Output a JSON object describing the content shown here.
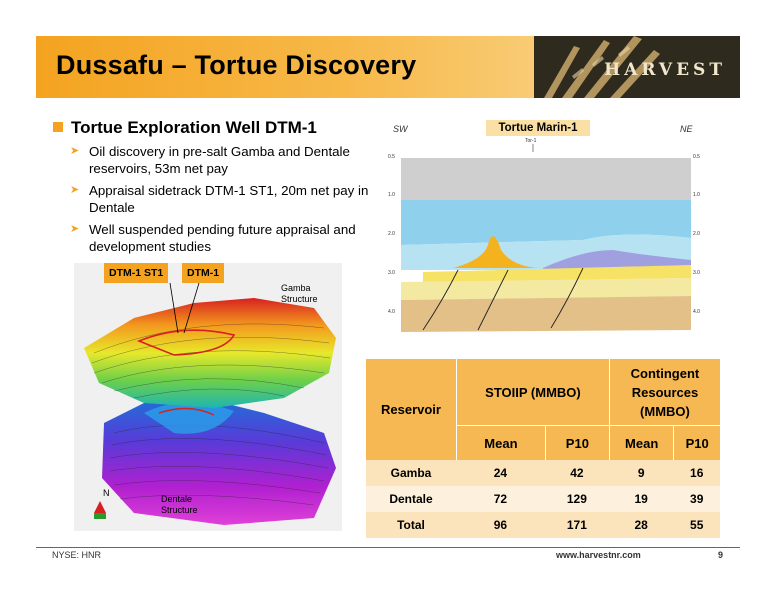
{
  "slide": {
    "title": "Dussafu – Tortue Discovery",
    "logo": "HARVEST",
    "main_bullet": "Tortue Exploration Well DTM-1",
    "sub_bullets": [
      "Oil discovery in pre-salt Gamba and Dentale reservoirs, 53m net pay",
      "Appraisal sidetrack DTM-1 ST1, 20m net pay in Dentale",
      "Well suspended pending future appraisal and development studies"
    ]
  },
  "map": {
    "tag_st1": "DTM-1 ST1",
    "tag_dtm": "DTM-1",
    "gamba_label_1": "Gamba",
    "gamba_label_2": "Structure",
    "dentale_label_1": "Dentale",
    "dentale_label_2": "Structure",
    "north": "N"
  },
  "seismic": {
    "well_tag": "Tortue Marin-1",
    "sw": "SW",
    "ne": "NE",
    "depth_ticks": [
      "0.5",
      "1.0",
      "2.0",
      "3.0",
      "4.0"
    ],
    "well_small": "Tor-1"
  },
  "table": {
    "header_reservoir": "Reservoir",
    "header_stoiip": "STOIIP (MMBO)",
    "header_contingent_1": "Contingent",
    "header_contingent_2": "Resources",
    "header_contingent_3": "(MMBO)",
    "sub_mean": "Mean",
    "sub_p10": "P10",
    "rows": [
      {
        "name": "Gamba",
        "stoiip_mean": "24",
        "stoiip_p10": "42",
        "cr_mean": "9",
        "cr_p10": "16"
      },
      {
        "name": "Dentale",
        "stoiip_mean": "72",
        "stoiip_p10": "129",
        "cr_mean": "19",
        "cr_p10": "39"
      },
      {
        "name": "Total",
        "stoiip_mean": "96",
        "stoiip_p10": "171",
        "cr_mean": "28",
        "cr_p10": "55"
      }
    ]
  },
  "footer": {
    "left": "NYSE: HNR",
    "center": "www.harvestnr.com",
    "page": "9"
  }
}
